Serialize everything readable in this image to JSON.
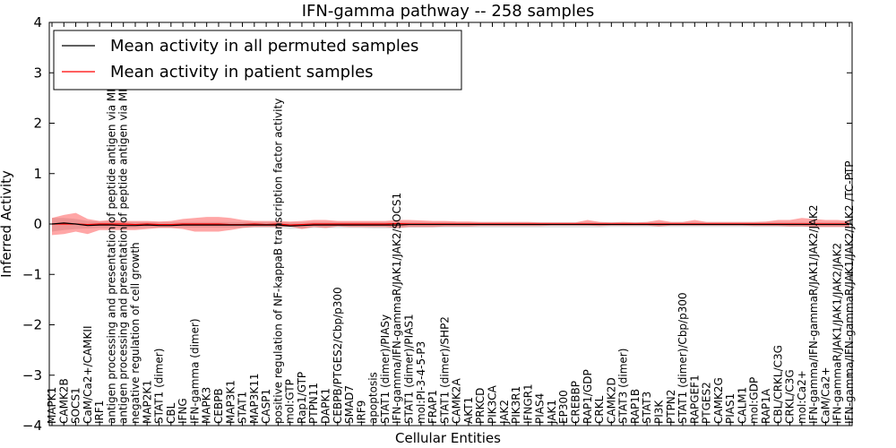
{
  "chart_data": {
    "type": "line",
    "title": "IFN-gamma pathway -- 258 samples",
    "xlabel": "Cellular Entities",
    "ylabel": "Inferred Activity",
    "ylim": [
      -4,
      4
    ],
    "yticks": [
      -4,
      -3,
      -2,
      -1,
      0,
      1,
      2,
      3,
      4
    ],
    "legend_position": "upper-left",
    "categories": [
      "MAPK1",
      "CAMK2B",
      "SOCS1",
      "CaM/Ca2+/CAMKII",
      "IRF1",
      "antigen processing and presentation of peptide antigen via MHC class I",
      "antigen processing and presentation of peptide antigen via MHC class II",
      "negative regulation of cell growth",
      "MAP2K1",
      "STAT1 (dimer)",
      "CBL",
      "IFNG",
      "IFN-gamma (dimer)",
      "MAPK3",
      "CEBPB",
      "MAP3K1",
      "STAT1",
      "MAP3K11",
      "CASP1",
      "positive regulation of NF-kappaB transcription factor activity",
      "mol:GTP",
      "Rap1/GTP",
      "PTPN11",
      "DAPK1",
      "CEBPB/PTGES2/Cbp/p300",
      "SMAD7",
      "IRF9",
      "apoptosis",
      "STAT1 (dimer)/PIASy",
      "IFN-gamma/IFN-gammaR/JAK1/JAK2/SOCS1",
      "STAT1 (dimer)/PIAS1",
      "mol:PI-3-4-5-P3",
      "FRAP1",
      "STAT1 (dimer)/SHP2",
      "CAMK2A",
      "AKT1",
      "PRKCD",
      "PIK3CA",
      "JAK2",
      "PIK3R1",
      "IFNGR1",
      "PIAS4",
      "JAK1",
      "EP300",
      "CREBBP",
      "RAP1/GDP",
      "CRKL",
      "CAMK2D",
      "STAT3 (dimer)",
      "RAP1B",
      "STAT3",
      "PI3K",
      "PTPN2",
      "STAT1 (dimer)/Cbp/p300",
      "RAPGEF1",
      "PTGES2",
      "CAMK2G",
      "PIAS1",
      "CALM1",
      "mol:GDP",
      "RAP1A",
      "CBL/CRKL/C3G",
      "CRKL/C3G",
      "mol:Ca2+",
      "IFN-gamma/IFN-gammaR/JAK1/JAK2/JAK2",
      "CaM/Ca2+",
      "IFN-gammaR/JAK1/JAK1/JAK2/JAK2",
      "IFN-gamma/IFN-gammaR/JAK1/JAK2/JAK2 /TC-PTP"
    ],
    "series": [
      {
        "name": "Mean activity in all permuted samples",
        "color": "#000000",
        "values": [
          0.0,
          0.02,
          0.0,
          -0.03,
          -0.02,
          -0.02,
          -0.03,
          -0.03,
          -0.02,
          -0.03,
          -0.03,
          -0.02,
          -0.02,
          -0.02,
          -0.02,
          -0.02,
          -0.02,
          -0.02,
          -0.02,
          -0.02,
          -0.04,
          -0.03,
          -0.02,
          -0.02,
          -0.02,
          -0.02,
          -0.02,
          -0.02,
          -0.02,
          -0.02,
          -0.01,
          -0.01,
          -0.01,
          -0.01,
          -0.01,
          -0.01,
          -0.01,
          -0.01,
          -0.01,
          -0.01,
          -0.01,
          -0.01,
          -0.01,
          -0.01,
          -0.01,
          -0.01,
          -0.01,
          -0.01,
          -0.01,
          -0.01,
          -0.01,
          -0.01,
          -0.01,
          -0.01,
          -0.01,
          -0.01,
          -0.01,
          -0.01,
          -0.01,
          -0.01,
          -0.01,
          -0.01,
          -0.01,
          -0.01,
          -0.01,
          -0.01,
          -0.01,
          -0.01
        ],
        "band_low": [
          -0.15,
          -0.12,
          -0.1,
          -0.09,
          -0.08,
          -0.08,
          -0.08,
          -0.08,
          -0.07,
          -0.07,
          -0.07,
          -0.07,
          -0.07,
          -0.07,
          -0.07,
          -0.07,
          -0.07,
          -0.07,
          -0.07,
          -0.07,
          -0.1,
          -0.09,
          -0.08,
          -0.08,
          -0.08,
          -0.08,
          -0.08,
          -0.09,
          -0.09,
          -0.09,
          -0.07,
          -0.07,
          -0.07,
          -0.07,
          -0.07,
          -0.07,
          -0.07,
          -0.07,
          -0.07,
          -0.07,
          -0.07,
          -0.07,
          -0.07,
          -0.07,
          -0.07,
          -0.07,
          -0.07,
          -0.06,
          -0.06,
          -0.06,
          -0.06,
          -0.06,
          -0.06,
          -0.06,
          -0.06,
          -0.06,
          -0.06,
          -0.06,
          -0.06,
          -0.06,
          -0.06,
          -0.06,
          -0.06,
          -0.06,
          -0.06,
          -0.06,
          -0.06,
          -0.06
        ],
        "band_high": [
          0.12,
          0.12,
          0.1,
          0.06,
          0.05,
          0.05,
          0.04,
          0.04,
          0.04,
          0.04,
          0.04,
          0.04,
          0.04,
          0.04,
          0.04,
          0.04,
          0.04,
          0.04,
          0.04,
          0.04,
          0.03,
          0.03,
          0.04,
          0.04,
          0.04,
          0.04,
          0.04,
          0.04,
          0.04,
          0.04,
          0.04,
          0.04,
          0.04,
          0.04,
          0.04,
          0.04,
          0.04,
          0.04,
          0.04,
          0.04,
          0.04,
          0.04,
          0.04,
          0.04,
          0.04,
          0.04,
          0.04,
          0.04,
          0.04,
          0.04,
          0.04,
          0.04,
          0.04,
          0.04,
          0.04,
          0.04,
          0.04,
          0.04,
          0.04,
          0.04,
          0.04,
          0.04,
          0.04,
          0.04,
          0.04,
          0.04,
          0.04,
          0.04
        ]
      },
      {
        "name": "Mean activity in patient samples",
        "color": "#ff0000",
        "values": [
          0.0,
          0.0,
          0.0,
          -0.01,
          0.0,
          0.0,
          0.0,
          -0.01,
          0.0,
          -0.01,
          -0.01,
          0.0,
          0.0,
          0.0,
          0.0,
          -0.01,
          -0.01,
          0.0,
          -0.01,
          0.0,
          -0.02,
          -0.01,
          0.0,
          0.0,
          0.0,
          0.0,
          0.0,
          0.0,
          0.0,
          0.01,
          0.0,
          0.0,
          0.0,
          0.0,
          0.0,
          0.0,
          0.0,
          0.0,
          0.0,
          0.0,
          0.0,
          0.0,
          0.0,
          0.0,
          0.0,
          0.0,
          0.0,
          0.0,
          0.0,
          0.0,
          0.0,
          0.0,
          0.0,
          0.0,
          0.0,
          0.0,
          0.0,
          0.0,
          0.0,
          0.0,
          0.0,
          0.0,
          0.0,
          0.0,
          0.0,
          0.0,
          0.0,
          0.0
        ],
        "band_low": [
          -0.22,
          -0.2,
          -0.15,
          -0.2,
          -0.12,
          -0.12,
          -0.12,
          -0.12,
          -0.1,
          -0.08,
          -0.08,
          -0.1,
          -0.15,
          -0.15,
          -0.15,
          -0.12,
          -0.08,
          -0.06,
          -0.06,
          -0.06,
          -0.05,
          -0.1,
          -0.06,
          -0.08,
          -0.05,
          -0.06,
          -0.06,
          -0.06,
          -0.06,
          -0.08,
          -0.06,
          -0.06,
          -0.06,
          -0.05,
          -0.05,
          -0.05,
          -0.04,
          -0.04,
          -0.04,
          -0.04,
          -0.04,
          -0.04,
          -0.03,
          -0.03,
          -0.03,
          -0.03,
          -0.04,
          -0.03,
          -0.03,
          -0.03,
          -0.03,
          -0.05,
          -0.03,
          -0.03,
          -0.03,
          -0.03,
          -0.03,
          -0.03,
          -0.03,
          -0.04,
          -0.04,
          -0.04,
          -0.05,
          -0.05,
          -0.06,
          -0.06,
          -0.06,
          -0.06
        ],
        "band_high": [
          0.12,
          0.18,
          0.22,
          0.1,
          0.06,
          0.08,
          0.06,
          0.06,
          0.06,
          0.05,
          0.06,
          0.1,
          0.12,
          0.14,
          0.14,
          0.12,
          0.08,
          0.06,
          0.06,
          0.06,
          0.05,
          0.06,
          0.08,
          0.08,
          0.06,
          0.06,
          0.06,
          0.06,
          0.06,
          0.08,
          0.08,
          0.07,
          0.06,
          0.06,
          0.05,
          0.05,
          0.04,
          0.04,
          0.04,
          0.04,
          0.04,
          0.03,
          0.03,
          0.03,
          0.03,
          0.08,
          0.04,
          0.03,
          0.04,
          0.03,
          0.04,
          0.08,
          0.04,
          0.04,
          0.08,
          0.04,
          0.04,
          0.04,
          0.04,
          0.04,
          0.05,
          0.08,
          0.08,
          0.12,
          0.1,
          0.08,
          0.08,
          0.06
        ]
      }
    ]
  }
}
